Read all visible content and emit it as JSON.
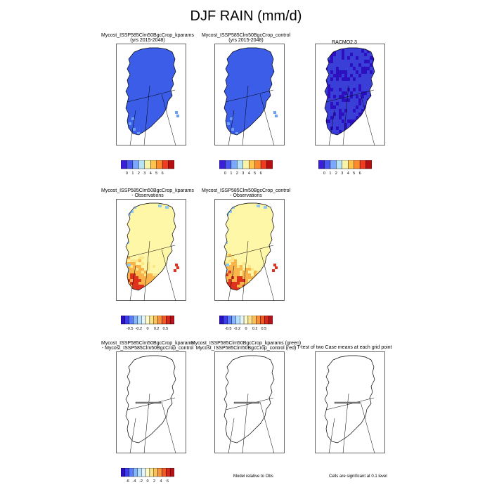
{
  "title": "DJF RAIN (mm/d)",
  "panels": [
    {
      "line1": "Mycost_ISSP585Clm50BgcCrop_kparams",
      "line2": "(yrs 2015-2048)",
      "fill": "blue"
    },
    {
      "line1": "Mycost_ISSP585Clm50BgcCrop_control",
      "line2": "(yrs 2015-2048)",
      "fill": "blue"
    },
    {
      "line1": "RACMO2.3",
      "line2": "",
      "fill": "racmo"
    },
    {
      "line1": "Mycost_ISSP585Clm50BgcCrop_kparams",
      "line2": "- Observations",
      "fill": "diff"
    },
    {
      "line1": "Mycost_ISSP585Clm50BgcCrop_control",
      "line2": "- Observations",
      "fill": "diff"
    },
    {
      "line1": "Mycost_ISSP585Clm50BgcCrop_kparams",
      "line2": "- Mycost_ISSP585Clm50BgcCrop_control",
      "fill": "none"
    },
    {
      "line1": "Mycost_ISSP585Clm50BgcCrop_kparams (green)",
      "line2": "Mycost_ISSP585Clm50BgcCrop_control (red)",
      "fill": "none"
    },
    {
      "line1": "T-test of two Case means at each grid point",
      "line2": "",
      "fill": "none"
    }
  ],
  "colorbars": {
    "abs": {
      "labels": [
        "0",
        "1",
        "2",
        "3",
        "4",
        "5",
        "6"
      ],
      "colors": [
        "#3a1ed8",
        "#4a58f0",
        "#7aa8ff",
        "#b7e3f5",
        "#f7f3a8",
        "#ffc24a",
        "#ff8a2b",
        "#f03b20",
        "#b60f12"
      ]
    },
    "diff": {
      "labels": [
        "-0.5",
        "-0.2",
        "0",
        "0.2",
        "0.5"
      ],
      "colors": [
        "#2a10c8",
        "#3d3df0",
        "#5a7cff",
        "#86b6ff",
        "#b4e0ff",
        "#e4f6fc",
        "#fffbc8",
        "#fde58a",
        "#fcc05a",
        "#fa9038",
        "#f05a25",
        "#d8281c",
        "#b5121a"
      ]
    },
    "diff2": {
      "labels": [
        "-6",
        "-4",
        "-2",
        "0",
        "2",
        "4",
        "6"
      ],
      "colors": [
        "#2a10c8",
        "#3d3df0",
        "#5a7cff",
        "#86b6ff",
        "#b4e0ff",
        "#e4f6fc",
        "#fffbc8",
        "#fde58a",
        "#fcc05a",
        "#fa9038",
        "#f05a25",
        "#d8281c",
        "#b5121a"
      ]
    }
  },
  "notes": {
    "model_relative": "Model relative to Obs",
    "significance": "Cells are significant at 0.1 level"
  },
  "colors": {
    "blue": "#3b5de8",
    "blue_light": "#6aa0f5",
    "racmo_base": "#3a3fd8",
    "racmo_dark": "#2c10c0",
    "diff_yellow": "#fff7a8",
    "diff_orange": "#fbb44a",
    "diff_red": "#e0301e",
    "diff_blue": "#8fc8f0"
  }
}
